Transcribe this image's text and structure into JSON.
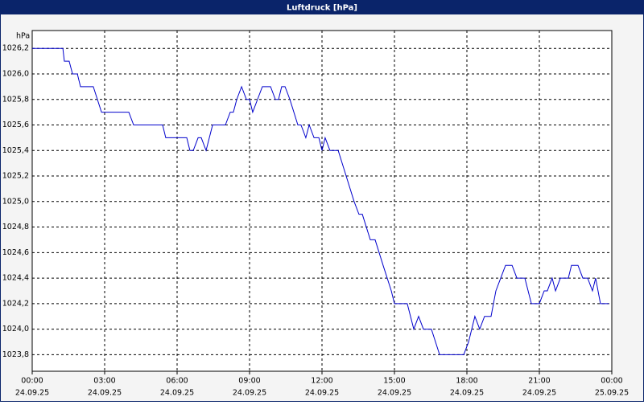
{
  "chart_data": {
    "type": "line",
    "title": "Luftdruck [hPa]",
    "y_label": "hPa",
    "x": [
      0,
      1.27,
      1.33,
      1.53,
      1.67,
      1.87,
      2.0,
      2.53,
      2.87,
      4.0,
      4.2,
      5.4,
      5.53,
      6.4,
      6.53,
      6.67,
      6.87,
      7.0,
      7.2,
      7.47,
      8.0,
      8.2,
      8.33,
      8.47,
      8.67,
      8.87,
      9.0,
      9.13,
      9.33,
      9.53,
      9.87,
      10.07,
      10.2,
      10.33,
      10.47,
      10.67,
      11.0,
      11.13,
      11.33,
      11.47,
      11.67,
      11.87,
      12.0,
      12.13,
      12.33,
      12.67,
      13.0,
      13.33,
      13.53,
      13.67,
      14.0,
      14.2,
      14.53,
      14.87,
      15.0,
      15.53,
      15.8,
      16.0,
      16.2,
      16.53,
      16.87,
      17.87,
      18.07,
      18.33,
      18.53,
      18.73,
      19.0,
      19.2,
      19.4,
      19.6,
      19.87,
      20.07,
      20.4,
      20.67,
      21.0,
      21.2,
      21.33,
      21.53,
      21.67,
      21.87,
      22.2,
      22.33,
      22.6,
      22.8,
      23.0,
      23.2,
      23.33,
      23.53,
      23.87
    ],
    "series": [
      {
        "name": "Luftdruck",
        "color": "#0000cc",
        "values": [
          1026.2,
          1026.2,
          1026.1,
          1026.1,
          1026.0,
          1026.0,
          1025.9,
          1025.9,
          1025.7,
          1025.7,
          1025.6,
          1025.6,
          1025.5,
          1025.5,
          1025.4,
          1025.4,
          1025.5,
          1025.5,
          1025.4,
          1025.6,
          1025.6,
          1025.7,
          1025.7,
          1025.8,
          1025.9,
          1025.8,
          1025.8,
          1025.7,
          1025.8,
          1025.9,
          1025.9,
          1025.8,
          1025.8,
          1025.9,
          1025.9,
          1025.8,
          1025.6,
          1025.6,
          1025.5,
          1025.6,
          1025.5,
          1025.5,
          1025.4,
          1025.5,
          1025.4,
          1025.4,
          1025.2,
          1025.0,
          1024.9,
          1024.9,
          1024.7,
          1024.7,
          1024.5,
          1024.3,
          1024.2,
          1024.2,
          1024.0,
          1024.1,
          1024.0,
          1024.0,
          1023.8,
          1023.8,
          1023.9,
          1024.1,
          1024.0,
          1024.1,
          1024.1,
          1024.3,
          1024.4,
          1024.5,
          1024.5,
          1024.4,
          1024.4,
          1024.2,
          1024.2,
          1024.3,
          1024.3,
          1024.4,
          1024.3,
          1024.4,
          1024.4,
          1024.5,
          1024.5,
          1024.4,
          1024.4,
          1024.3,
          1024.4,
          1024.2,
          1024.2
        ]
      }
    ],
    "xlim": [
      0,
      24
    ],
    "xticks": [
      {
        "value": 0,
        "label": "00:00",
        "date": "24.09.25"
      },
      {
        "value": 3,
        "label": "03:00",
        "date": "24.09.25"
      },
      {
        "value": 6,
        "label": "06:00",
        "date": "24.09.25"
      },
      {
        "value": 9,
        "label": "09:00",
        "date": "24.09.25"
      },
      {
        "value": 12,
        "label": "12:00",
        "date": "24.09.25"
      },
      {
        "value": 15,
        "label": "15:00",
        "date": "24.09.25"
      },
      {
        "value": 18,
        "label": "18:00",
        "date": "24.09.25"
      },
      {
        "value": 21,
        "label": "21:00",
        "date": "24.09.25"
      },
      {
        "value": 24,
        "label": "00:00",
        "date": "25.09.25"
      }
    ],
    "ylim": [
      1023.67,
      1026.34
    ],
    "yticks": [
      {
        "value": 1023.8,
        "label": "1023,8"
      },
      {
        "value": 1024.0,
        "label": "1024,0"
      },
      {
        "value": 1024.2,
        "label": "1024,2"
      },
      {
        "value": 1024.4,
        "label": "1024,4"
      },
      {
        "value": 1024.6,
        "label": "1024,6"
      },
      {
        "value": 1024.8,
        "label": "1024,8"
      },
      {
        "value": 1025.0,
        "label": "1025,0"
      },
      {
        "value": 1025.2,
        "label": "1025,2"
      },
      {
        "value": 1025.4,
        "label": "1025,4"
      },
      {
        "value": 1025.6,
        "label": "1025,6"
      },
      {
        "value": 1025.8,
        "label": "1025,8"
      },
      {
        "value": 1026.0,
        "label": "1026,0"
      },
      {
        "value": 1026.2,
        "label": "1026,2"
      }
    ],
    "grid": true
  }
}
